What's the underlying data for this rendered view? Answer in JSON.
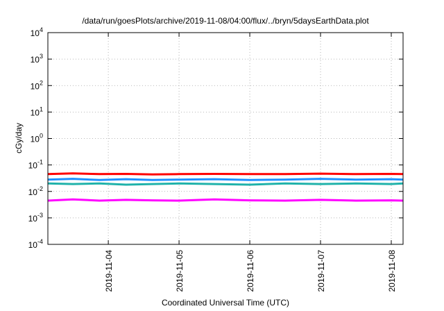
{
  "chart_data": {
    "type": "line",
    "title": "/data/run/goesPlots/archive/2019-11-08/04:00/flux/../bryn/5daysEarthData.plot",
    "xlabel": "Coordinated Universal Time (UTC)",
    "ylabel": "cGy/day",
    "yscale": "log",
    "ylim": [
      0.0001,
      10000
    ],
    "xlim": [
      "2019-11-03 03:30",
      "2019-11-08 04:00"
    ],
    "grid": true,
    "x_ticks": [
      {
        "date": "2019-11-04",
        "label": "2019-11-04"
      },
      {
        "date": "2019-11-05",
        "label": "2019-11-05"
      },
      {
        "date": "2019-11-06",
        "label": "2019-11-06"
      },
      {
        "date": "2019-11-07",
        "label": "2019-11-07"
      },
      {
        "date": "2019-11-08",
        "label": "2019-11-08"
      }
    ],
    "y_ticks": [
      {
        "value": 0.0001,
        "base": "10",
        "exp": "-4"
      },
      {
        "value": 0.001,
        "base": "10",
        "exp": "-3"
      },
      {
        "value": 0.01,
        "base": "10",
        "exp": "-2"
      },
      {
        "value": 0.1,
        "base": "10",
        "exp": "-1"
      },
      {
        "value": 1,
        "base": "10",
        "exp": "0"
      },
      {
        "value": 10,
        "base": "10",
        "exp": "1"
      },
      {
        "value": 100,
        "base": "10",
        "exp": "2"
      },
      {
        "value": 1000,
        "base": "10",
        "exp": "3"
      },
      {
        "value": 10000,
        "base": "10",
        "exp": "4"
      }
    ],
    "series": [
      {
        "color": "#ff0000",
        "values": [
          {
            "x": "2019-11-03 03:30",
            "y": 0.045
          },
          {
            "x": "2019-11-03 12:00",
            "y": 0.048
          },
          {
            "x": "2019-11-03 21:00",
            "y": 0.045
          },
          {
            "x": "2019-11-04 06:00",
            "y": 0.046
          },
          {
            "x": "2019-11-04 15:00",
            "y": 0.044
          },
          {
            "x": "2019-11-05 00:00",
            "y": 0.045
          },
          {
            "x": "2019-11-05 12:00",
            "y": 0.046
          },
          {
            "x": "2019-11-06 00:00",
            "y": 0.045
          },
          {
            "x": "2019-11-06 12:00",
            "y": 0.045
          },
          {
            "x": "2019-11-07 00:00",
            "y": 0.047
          },
          {
            "x": "2019-11-07 12:00",
            "y": 0.045
          },
          {
            "x": "2019-11-08 00:00",
            "y": 0.046
          },
          {
            "x": "2019-11-08 04:00",
            "y": 0.045
          }
        ]
      },
      {
        "color": "#1e90ff",
        "values": [
          {
            "x": "2019-11-03 03:30",
            "y": 0.028
          },
          {
            "x": "2019-11-03 12:00",
            "y": 0.03
          },
          {
            "x": "2019-11-03 21:00",
            "y": 0.027
          },
          {
            "x": "2019-11-04 06:00",
            "y": 0.029
          },
          {
            "x": "2019-11-04 15:00",
            "y": 0.027
          },
          {
            "x": "2019-11-05 00:00",
            "y": 0.028
          },
          {
            "x": "2019-11-05 12:00",
            "y": 0.029
          },
          {
            "x": "2019-11-06 00:00",
            "y": 0.027
          },
          {
            "x": "2019-11-06 12:00",
            "y": 0.028
          },
          {
            "x": "2019-11-07 00:00",
            "y": 0.03
          },
          {
            "x": "2019-11-07 12:00",
            "y": 0.028
          },
          {
            "x": "2019-11-08 00:00",
            "y": 0.029
          },
          {
            "x": "2019-11-08 04:00",
            "y": 0.028
          }
        ]
      },
      {
        "color": "#20b2aa",
        "values": [
          {
            "x": "2019-11-03 03:30",
            "y": 0.02
          },
          {
            "x": "2019-11-03 12:00",
            "y": 0.019
          },
          {
            "x": "2019-11-03 21:00",
            "y": 0.02
          },
          {
            "x": "2019-11-04 06:00",
            "y": 0.018
          },
          {
            "x": "2019-11-04 15:00",
            "y": 0.019
          },
          {
            "x": "2019-11-05 00:00",
            "y": 0.02
          },
          {
            "x": "2019-11-05 12:00",
            "y": 0.019
          },
          {
            "x": "2019-11-06 00:00",
            "y": 0.018
          },
          {
            "x": "2019-11-06 12:00",
            "y": 0.02
          },
          {
            "x": "2019-11-07 00:00",
            "y": 0.019
          },
          {
            "x": "2019-11-07 12:00",
            "y": 0.02
          },
          {
            "x": "2019-11-08 00:00",
            "y": 0.019
          },
          {
            "x": "2019-11-08 04:00",
            "y": 0.02
          }
        ]
      },
      {
        "color": "#ff00ff",
        "values": [
          {
            "x": "2019-11-03 03:30",
            "y": 0.0045
          },
          {
            "x": "2019-11-03 12:00",
            "y": 0.005
          },
          {
            "x": "2019-11-03 21:00",
            "y": 0.0045
          },
          {
            "x": "2019-11-04 06:00",
            "y": 0.0048
          },
          {
            "x": "2019-11-04 15:00",
            "y": 0.0046
          },
          {
            "x": "2019-11-05 00:00",
            "y": 0.0045
          },
          {
            "x": "2019-11-05 12:00",
            "y": 0.005
          },
          {
            "x": "2019-11-06 00:00",
            "y": 0.0046
          },
          {
            "x": "2019-11-06 12:00",
            "y": 0.0045
          },
          {
            "x": "2019-11-07 00:00",
            "y": 0.0048
          },
          {
            "x": "2019-11-07 12:00",
            "y": 0.0045
          },
          {
            "x": "2019-11-08 00:00",
            "y": 0.0046
          },
          {
            "x": "2019-11-08 04:00",
            "y": 0.0045
          }
        ]
      }
    ]
  }
}
